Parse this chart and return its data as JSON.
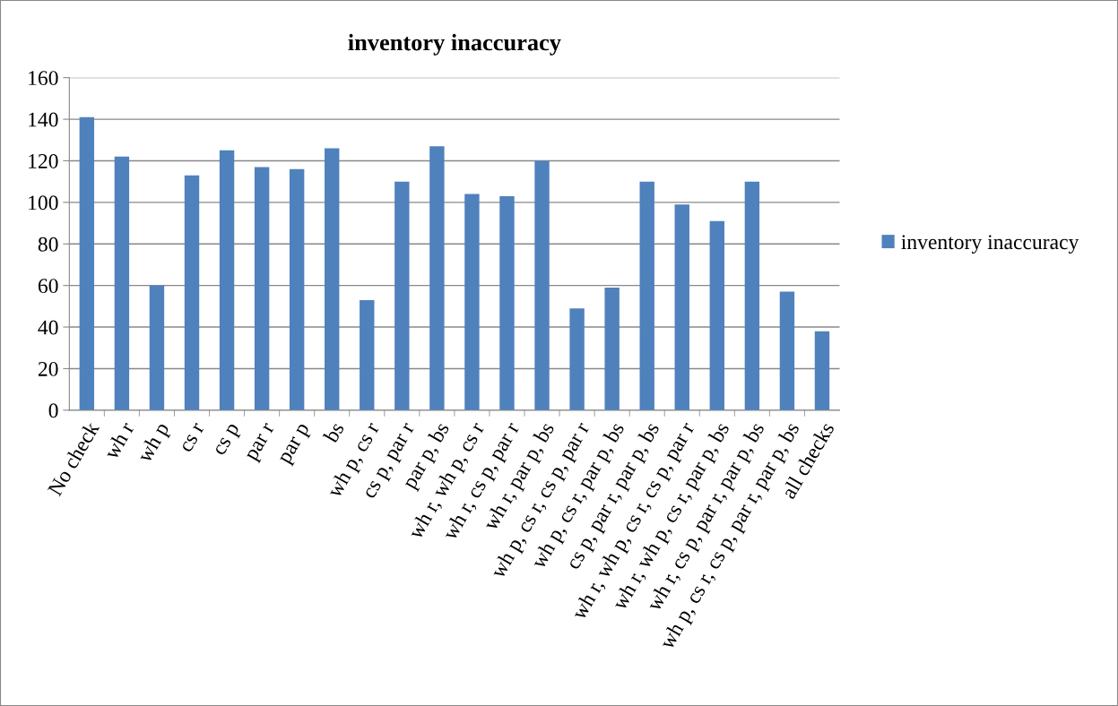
{
  "chart_data": {
    "type": "bar",
    "title": "inventory inaccuracy",
    "categories": [
      "No check",
      "wh r",
      "wh p",
      "cs r",
      "cs p",
      "par r",
      "par p",
      "bs",
      "wh p, cs r",
      "cs p, par r",
      "par p, bs",
      "wh r, wh p, cs r",
      "wh r, cs p, par r",
      "wh r, par p, bs",
      "wh p, cs r, cs p, par r",
      "wh p, cs r, par p, bs",
      "cs p, par r, par p, bs",
      "wh r, wh p, cs r, cs p, par r",
      "wh r, wh p, cs r, par p, bs",
      "wh r, cs p, par r, par p, bs",
      "wh p, cs r, cs p, par r, par p, bs",
      "all checks"
    ],
    "series": [
      {
        "name": "inventory inaccuracy",
        "color": "#4f81bd",
        "values": [
          141,
          122,
          60,
          113,
          125,
          117,
          116,
          126,
          53,
          110,
          127,
          104,
          103,
          120,
          49,
          59,
          110,
          99,
          91,
          110,
          57,
          38
        ]
      }
    ],
    "ylim": [
      0,
      160
    ],
    "yticks": [
      0,
      20,
      40,
      60,
      80,
      100,
      120,
      140,
      160
    ],
    "grid": "y",
    "legend": "right"
  }
}
